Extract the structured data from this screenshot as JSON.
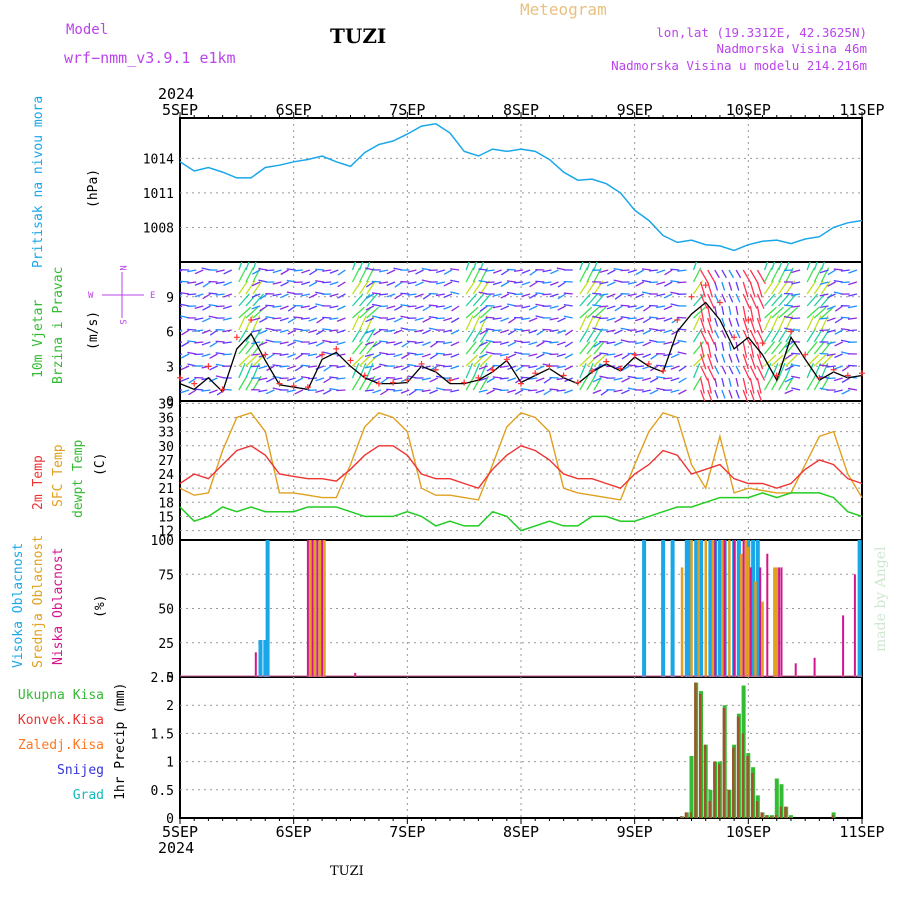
{
  "header": {
    "model_label": "Model",
    "model_name": "wrf−nmm_v3.9.1  e1km",
    "station": "TUZI",
    "meteogram_label": "Meteogram",
    "lonlat": "lon,lat (19.3312E, 42.3625N)",
    "elevation": "Nadmorska Visina 46m",
    "model_elevation": "Nadmorska Visina u modelu 214.216m",
    "year": "2024"
  },
  "footer": {
    "station": "TUZI",
    "credit": "made by Angel"
  },
  "colors": {
    "pressure": "#1aa7ea",
    "temp2m": "#ee3333",
    "sfc": "#e0a020",
    "dewpt": "#22cc22",
    "high_cloud": "#1aa7ea",
    "mid_cloud": "#e0a020",
    "low_cloud": "#d4148c",
    "total_precip": "#33bb33",
    "conv_precip": "#ee3333",
    "strat_precip": "#ff7722",
    "snow": "#3333dd",
    "graupel": "#11bbbb",
    "wind_speed": "#000000",
    "wind_gust": "#ff3333",
    "purple_label": "#bb44ee"
  },
  "chart_data": [
    {
      "type": "line",
      "panel": "pressure",
      "ylabel_title": "Pritisak na nivou mora",
      "ylabel_unit": "(hPa)",
      "x_ticks": [
        "5SEP",
        "6SEP",
        "7SEP",
        "8SEP",
        "9SEP",
        "10SEP",
        "11SEP"
      ],
      "ylim": [
        1005,
        1017.5
      ],
      "y_ticks": [
        "1008",
        "1011",
        "1014"
      ],
      "x_hours": [
        0,
        3,
        6,
        9,
        12,
        15,
        18,
        21,
        24,
        27,
        30,
        33,
        36,
        39,
        42,
        45,
        48,
        51,
        54,
        57,
        60,
        63,
        66,
        69,
        72,
        75,
        78,
        81,
        84,
        87,
        90,
        93,
        96,
        99,
        102,
        105,
        108,
        111,
        114,
        117,
        120,
        123,
        126,
        129,
        132,
        135,
        138,
        141,
        144
      ],
      "series": [
        {
          "name": "Pritisak na nivou mora",
          "values": [
            1013.7,
            1012.9,
            1013.2,
            1012.8,
            1012.3,
            1012.3,
            1013.2,
            1013.4,
            1013.7,
            1013.9,
            1014.2,
            1013.7,
            1013.3,
            1014.5,
            1015.2,
            1015.5,
            1016.1,
            1016.8,
            1017.0,
            1016.2,
            1014.6,
            1014.2,
            1014.8,
            1014.6,
            1014.8,
            1014.6,
            1013.9,
            1012.8,
            1012.1,
            1012.2,
            1011.8,
            1011.0,
            1009.5,
            1008.6,
            1007.3,
            1006.7,
            1006.9,
            1006.5,
            1006.4,
            1006.0,
            1006.5,
            1006.8,
            1006.9,
            1006.6,
            1007.0,
            1007.2,
            1008.0,
            1008.4,
            1008.6
          ]
        }
      ]
    },
    {
      "type": "line",
      "panel": "wind",
      "ylabel_title_1": "10m Vjetar",
      "ylabel_title_2": "Brzina i Pravac",
      "ylabel_unit": "(m/s)",
      "compass": {
        "n": "N",
        "s": "S",
        "e": "E",
        "w": "W"
      },
      "ylim": [
        0,
        12
      ],
      "y_ticks": [
        "0",
        "3",
        "6",
        "9"
      ],
      "x_hours": [
        0,
        3,
        6,
        9,
        12,
        15,
        18,
        21,
        24,
        27,
        30,
        33,
        36,
        39,
        42,
        45,
        48,
        51,
        54,
        57,
        60,
        63,
        66,
        69,
        72,
        75,
        78,
        81,
        84,
        87,
        90,
        93,
        96,
        99,
        102,
        105,
        108,
        111,
        114,
        117,
        120,
        123,
        126,
        129,
        132,
        135,
        138,
        141,
        144
      ],
      "series": [
        {
          "name": "speed",
          "values": [
            1.5,
            1.0,
            2.0,
            0.8,
            4.5,
            5.8,
            3.5,
            1.4,
            1.2,
            1.0,
            3.6,
            4.2,
            3.0,
            2.0,
            1.5,
            1.5,
            1.6,
            3.0,
            2.5,
            1.5,
            1.5,
            1.8,
            2.5,
            3.5,
            1.6,
            2.2,
            2.8,
            2.0,
            1.5,
            2.5,
            3.2,
            2.6,
            3.8,
            3.0,
            2.5,
            6.0,
            7.5,
            8.5,
            7.0,
            4.5,
            5.5,
            4.0,
            1.8,
            5.5,
            3.6,
            1.8,
            2.5,
            2.0,
            2.2
          ]
        },
        {
          "name": "gust",
          "values": [
            2.0,
            1.5,
            3.0,
            1.0,
            5.5,
            7.0,
            4.0,
            1.5,
            1.3,
            1.2,
            4.0,
            4.5,
            3.5,
            2.2,
            1.5,
            1.6,
            1.8,
            3.2,
            2.7,
            1.8,
            1.6,
            2.0,
            2.7,
            3.6,
            1.5,
            2.4,
            3.0,
            2.2,
            1.6,
            2.6,
            3.4,
            2.8,
            4.0,
            3.2,
            2.6,
            7.0,
            9.0,
            10.0,
            8.5,
            5.5,
            7.0,
            5.0,
            2.2,
            6.0,
            4.0,
            2.0,
            2.7,
            2.2,
            2.4
          ]
        }
      ]
    },
    {
      "type": "line",
      "panel": "temperature",
      "ylabel_title_1": "2m Temp",
      "ylabel_title_2": "SFC Temp",
      "ylabel_title_3": "dewpt Temp",
      "ylabel_unit": "(C)",
      "ylim": [
        10,
        39.5
      ],
      "y_ticks": [
        "12",
        "15",
        "18",
        "21",
        "24",
        "27",
        "30",
        "33",
        "36",
        "39"
      ],
      "x_hours": [
        0,
        3,
        6,
        9,
        12,
        15,
        18,
        21,
        24,
        27,
        30,
        33,
        36,
        39,
        42,
        45,
        48,
        51,
        54,
        57,
        60,
        63,
        66,
        69,
        72,
        75,
        78,
        81,
        84,
        87,
        90,
        93,
        96,
        99,
        102,
        105,
        108,
        111,
        114,
        117,
        120,
        123,
        126,
        129,
        132,
        135,
        138,
        141,
        144
      ],
      "series": [
        {
          "name": "2m Temp",
          "values": [
            22,
            24,
            23,
            26,
            29,
            30,
            28,
            24,
            23.5,
            23,
            23,
            22.5,
            25,
            28,
            30,
            30,
            28,
            24,
            23,
            23,
            22,
            21,
            25,
            28,
            30,
            29,
            27,
            24,
            23,
            23,
            22,
            21,
            24,
            26,
            29,
            28,
            24,
            25,
            26,
            23,
            22,
            22,
            21,
            22,
            25,
            27,
            26,
            23,
            22
          ]
        },
        {
          "name": "SFC Temp",
          "values": [
            21,
            19.5,
            20,
            29,
            36,
            37,
            33,
            20,
            20,
            19.5,
            19,
            19,
            26,
            34,
            37,
            36,
            33,
            21,
            19.5,
            19.5,
            19,
            18.5,
            26,
            34,
            37,
            36,
            33,
            21,
            20,
            19.5,
            19,
            18.5,
            26,
            33,
            37,
            36,
            26,
            21,
            32,
            20,
            21,
            20.5,
            20,
            20,
            26,
            32,
            33,
            24,
            19
          ]
        },
        {
          "name": "dewpt Temp",
          "values": [
            17,
            14,
            15,
            17,
            16,
            17,
            16,
            16,
            16,
            17,
            17,
            17,
            16,
            15,
            15,
            15,
            16,
            15,
            13,
            14,
            13,
            13,
            16,
            15,
            12,
            13,
            14,
            13,
            13,
            15,
            15,
            14,
            14,
            15,
            16,
            17,
            17,
            18,
            19,
            19,
            19,
            20,
            19,
            20,
            20,
            20,
            19,
            16,
            15
          ]
        }
      ]
    },
    {
      "type": "bar",
      "panel": "cloud",
      "ylabel_title_1": "Visoka Oblacnost",
      "ylabel_title_2": "Srednja Oblacnost",
      "ylabel_title_3": "Niska Oblacnost",
      "ylabel_unit": "(%)",
      "ylim": [
        0,
        100
      ],
      "y_ticks": [
        "0",
        "25",
        "50",
        "75",
        "100"
      ],
      "series": [
        {
          "name": "Visoka Oblacnost",
          "x_hours": [
            17,
            18,
            18.5,
            98,
            102,
            104,
            107,
            107.5,
            109,
            110,
            112,
            113,
            114,
            115,
            117,
            118,
            120,
            121,
            122,
            143.5
          ],
          "values": [
            27,
            27,
            100,
            100,
            100,
            100,
            100,
            100,
            100,
            100,
            100,
            100,
            100,
            100,
            100,
            100,
            100,
            100,
            100,
            100
          ]
        },
        {
          "name": "Srednja Oblacnost",
          "x_hours": [
            27.5,
            28.5,
            29.5,
            30.5,
            106,
            108,
            109.5,
            111,
            112.5,
            114.5,
            116,
            118.5,
            119.5,
            120,
            121.5,
            123,
            125.5,
            126
          ],
          "values": [
            100,
            100,
            100,
            100,
            80,
            100,
            100,
            100,
            100,
            100,
            100,
            90,
            100,
            95,
            70,
            55,
            80,
            80
          ]
        },
        {
          "name": "Niska Oblacnost",
          "x_hours": [
            16,
            27,
            28,
            29,
            30,
            37,
            113,
            115,
            117,
            119,
            120.5,
            122.5,
            124,
            126.5,
            127,
            130,
            134,
            140,
            142.5
          ],
          "values": [
            18,
            100,
            100,
            100,
            100,
            3,
            100,
            100,
            100,
            100,
            80,
            80,
            90,
            80,
            80,
            10,
            14,
            45,
            75
          ]
        }
      ]
    },
    {
      "type": "bar",
      "panel": "precipitation",
      "ylabel_title_1": "Ukupna Kisa",
      "ylabel_title_2": "Konvek.Kisa",
      "ylabel_title_3": "Zaledj.Kisa",
      "ylabel_title_4": "Snijeg",
      "ylabel_title_5": "Grad",
      "ylabel_unit": "1hr Precip (mm)",
      "ylim": [
        0,
        2.5
      ],
      "y_ticks": [
        "0",
        "0.5",
        "1",
        "1.5",
        "2",
        "2.5"
      ],
      "x_ticks_bottom": [
        "5SEP",
        "6SEP",
        "7SEP",
        "8SEP",
        "9SEP",
        "10SEP",
        "11SEP"
      ],
      "x_hours": [
        106,
        107,
        108,
        109,
        110,
        111,
        112,
        113,
        114,
        115,
        116,
        117,
        118,
        119,
        120,
        121,
        122,
        123,
        124,
        125,
        126,
        127,
        128,
        129,
        130,
        131,
        138
      ],
      "series": [
        {
          "name": "Ukupna Kisa",
          "values": [
            0.03,
            0.1,
            1.1,
            2.4,
            2.25,
            1.3,
            0.5,
            1.0,
            1.0,
            2.0,
            0.5,
            1.3,
            1.85,
            2.35,
            1.15,
            0.9,
            0.4,
            0.1,
            0.05,
            0.05,
            0.7,
            0.6,
            0.2,
            0.05,
            0,
            0,
            0.1
          ]
        },
        {
          "name": "Konvek.Kisa",
          "values": [
            0.03,
            0.1,
            0.1,
            2.4,
            2.2,
            1.3,
            0.3,
            1.0,
            0.95,
            1.95,
            0.5,
            1.25,
            1.8,
            1.5,
            1.1,
            0.8,
            0.3,
            0.1,
            0.05,
            0.03,
            0.05,
            0.2,
            0.2,
            0.02,
            0,
            0,
            0.05
          ]
        }
      ]
    }
  ]
}
